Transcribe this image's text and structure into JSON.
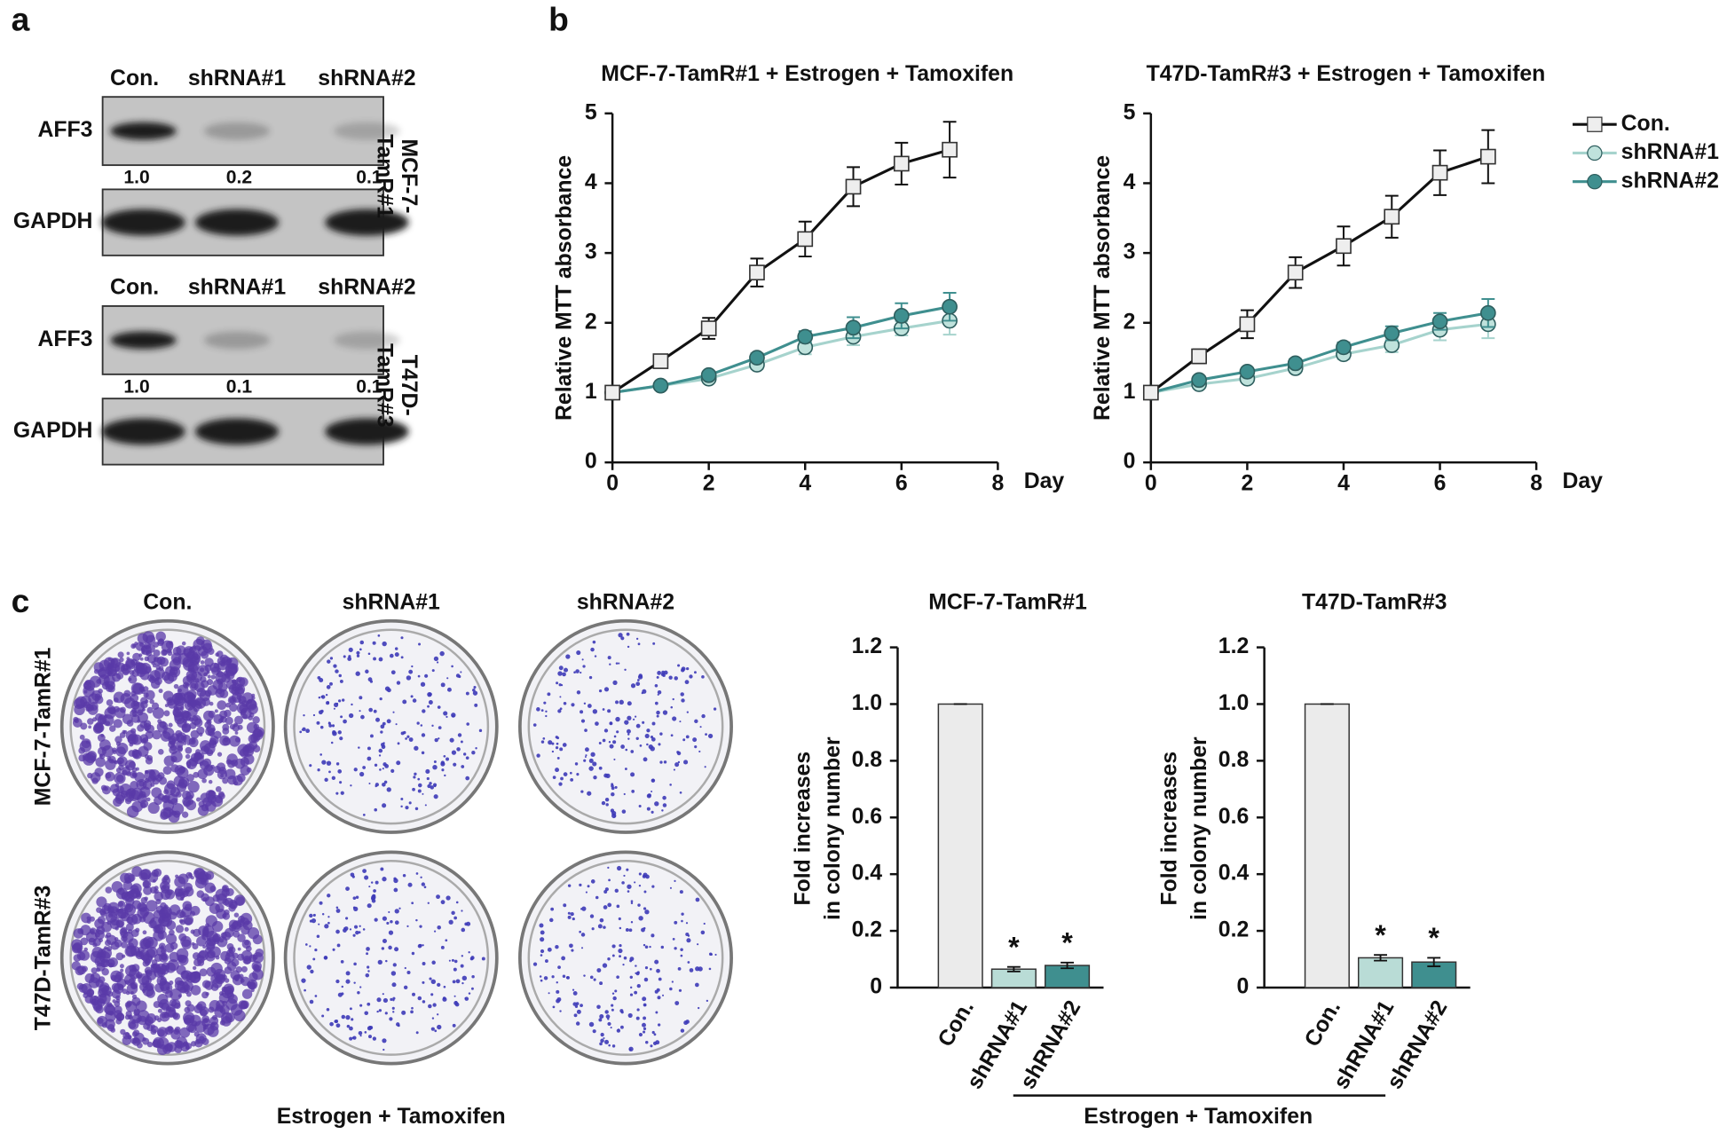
{
  "panel_labels": [
    "a",
    "b",
    "c"
  ],
  "blots": [
    {
      "lanes": [
        "Con.",
        "shRNA#1",
        "shRNA#2"
      ],
      "rows": [
        "AFF3",
        "GAPDH"
      ],
      "quantification": [
        "1.0",
        "0.2",
        "0.1"
      ],
      "cell_line": [
        "MCF-7-",
        "TamR#1"
      ]
    },
    {
      "lanes": [
        "Con.",
        "shRNA#1",
        "shRNA#2"
      ],
      "rows": [
        "AFF3",
        "GAPDH"
      ],
      "quantification": [
        "1.0",
        "0.1",
        "0.1"
      ],
      "cell_line": [
        "T47D-",
        "TamR#3"
      ]
    }
  ],
  "colony": {
    "columns": [
      "Con.",
      "shRNA#1",
      "shRNA#2"
    ],
    "rows": [
      "MCF-7-TamR#1",
      "T47D-TamR#3"
    ],
    "footer": "Estrogen + Tamoxifen"
  },
  "bar_footer": "Estrogen + Tamoxifen",
  "chart_data": [
    {
      "type": "line",
      "title": "MCF-7-TamR#1 + Estrogen  + Tamoxifen",
      "y_label": "Relative MTT absorbance",
      "x_label": "Day",
      "x": [
        0,
        1,
        2,
        3,
        4,
        5,
        6,
        7
      ],
      "xlim": [
        0,
        8
      ],
      "xticks": [
        0,
        2,
        4,
        6,
        8
      ],
      "ylim": [
        0,
        5
      ],
      "yticks": [
        0,
        1,
        2,
        3,
        4,
        5
      ],
      "legend": false,
      "series": [
        {
          "color": "#111111",
          "fill": "#eeeeee",
          "marker": "square",
          "values": [
            1,
            1.45,
            1.92,
            2.72,
            3.2,
            3.95,
            4.28,
            4.48
          ],
          "errors": [
            0,
            0.08,
            0.15,
            0.2,
            0.25,
            0.28,
            0.3,
            0.4
          ]
        },
        {
          "color": "#a6d3cd",
          "fill": "#bfe2dc",
          "marker": "circle",
          "values": [
            1,
            1.1,
            1.2,
            1.4,
            1.65,
            1.8,
            1.92,
            2.03
          ],
          "errors": [
            0,
            0.03,
            0.05,
            0.06,
            0.1,
            0.12,
            0.1,
            0.2
          ]
        },
        {
          "color": "#3f8f8f",
          "fill": "#3f8f8f",
          "marker": "circle",
          "values": [
            1,
            1.1,
            1.25,
            1.5,
            1.8,
            1.93,
            2.1,
            2.23
          ],
          "errors": [
            0,
            0.03,
            0.05,
            0.06,
            0.08,
            0.15,
            0.18,
            0.2
          ]
        }
      ]
    },
    {
      "type": "line",
      "title": "T47D-TamR#3 + Estrogen  + Tamoxifen",
      "y_label": "Relative MTT absorbance",
      "x_label": "Day",
      "x": [
        0,
        1,
        2,
        3,
        4,
        5,
        6,
        7
      ],
      "xlim": [
        0,
        8
      ],
      "xticks": [
        0,
        2,
        4,
        6,
        8
      ],
      "ylim": [
        0,
        5
      ],
      "yticks": [
        0,
        1,
        2,
        3,
        4,
        5
      ],
      "legend": true,
      "series": [
        {
          "name": "Con.",
          "color": "#111111",
          "fill": "#eeeeee",
          "marker": "square",
          "values": [
            1,
            1.52,
            1.98,
            2.72,
            3.1,
            3.52,
            4.15,
            4.38
          ],
          "errors": [
            0,
            0.1,
            0.2,
            0.22,
            0.28,
            0.3,
            0.32,
            0.38
          ]
        },
        {
          "name": "shRNA#1",
          "color": "#a6d3cd",
          "fill": "#bfe2dc",
          "marker": "circle",
          "values": [
            1,
            1.12,
            1.2,
            1.35,
            1.55,
            1.68,
            1.9,
            1.98
          ],
          "errors": [
            0,
            0.05,
            0.05,
            0.06,
            0.07,
            0.1,
            0.15,
            0.2
          ]
        },
        {
          "name": "shRNA#2",
          "color": "#3f8f8f",
          "fill": "#3f8f8f",
          "marker": "circle",
          "values": [
            1,
            1.18,
            1.3,
            1.42,
            1.65,
            1.85,
            2.02,
            2.14
          ],
          "errors": [
            0,
            0.05,
            0.05,
            0.06,
            0.07,
            0.1,
            0.12,
            0.2
          ]
        }
      ]
    },
    {
      "type": "bar",
      "title": "MCF-7-TamR#1",
      "y_label": [
        "Fold increases",
        "in colony number"
      ],
      "categories": [
        "Con.",
        "shRNA#1",
        "shRNA#2"
      ],
      "values": [
        1,
        0.065,
        0.078
      ],
      "errors": [
        0,
        0.008,
        0.01
      ],
      "annotations": [
        null,
        "*",
        "*"
      ],
      "colors": [
        "#ebebeb",
        "#b9dcd6",
        "#3f8f8f"
      ],
      "ylim": [
        0,
        1.2
      ],
      "yticks": [
        0,
        0.2,
        0.4,
        0.6,
        0.8,
        {
          "value": 1,
          "label": "1.0"
        },
        1.2
      ]
    },
    {
      "type": "bar",
      "title": "T47D-TamR#3",
      "y_label": [
        "Fold increases",
        "in colony number"
      ],
      "categories": [
        "Con.",
        "shRNA#1",
        "shRNA#2"
      ],
      "values": [
        1,
        0.105,
        0.09
      ],
      "errors": [
        0,
        0.01,
        0.015
      ],
      "annotations": [
        null,
        "*",
        "*"
      ],
      "colors": [
        "#ebebeb",
        "#b9dcd6",
        "#3f8f8f"
      ],
      "ylim": [
        0,
        1.2
      ],
      "yticks": [
        0,
        0.2,
        0.4,
        0.6,
        0.8,
        {
          "value": 1,
          "label": "1.0"
        },
        1.2
      ]
    }
  ]
}
